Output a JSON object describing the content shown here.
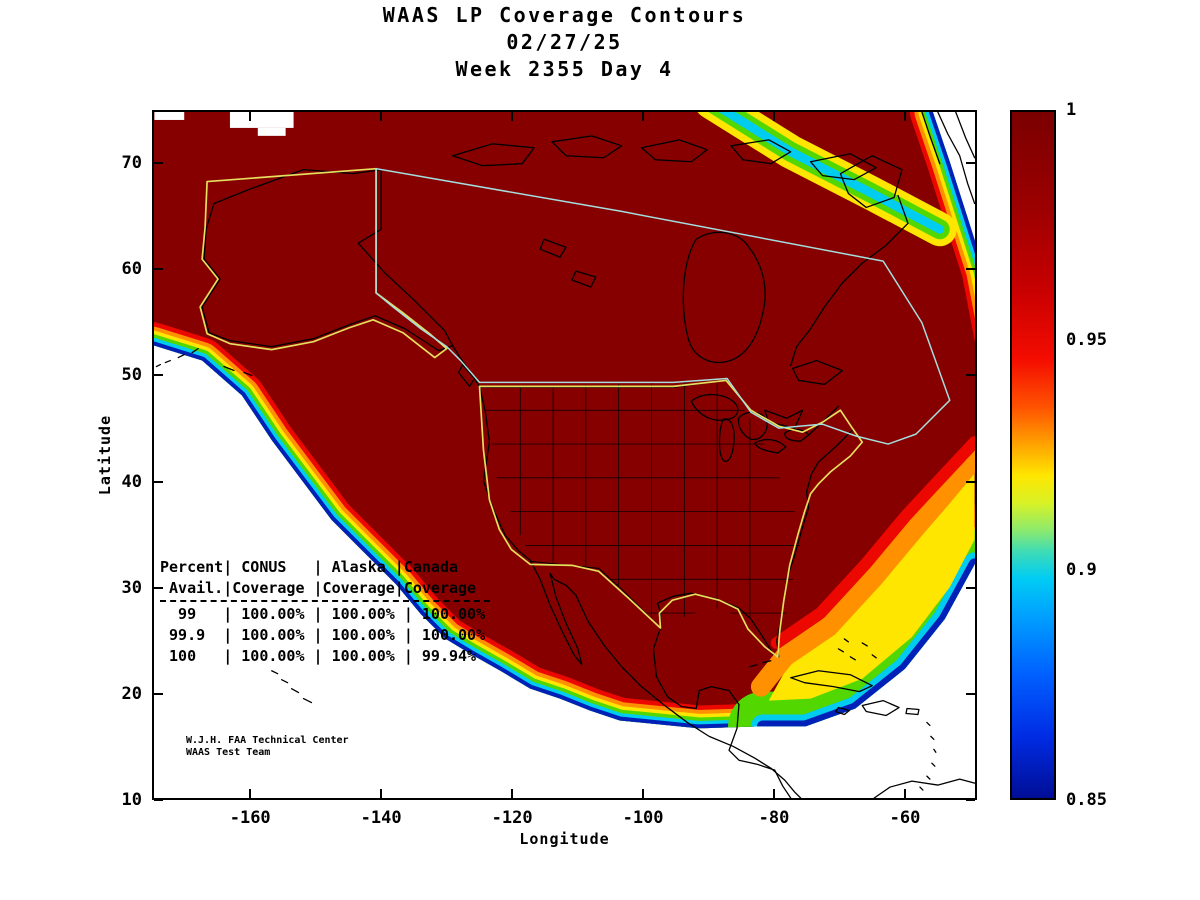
{
  "title": {
    "line1": "WAAS LP Coverage Contours",
    "line2": "02/27/25",
    "line3": "Week 2355 Day 4"
  },
  "axes": {
    "xlabel": "Longitude",
    "ylabel": "Latitude"
  },
  "credit": {
    "line1": "W.J.H. FAA Technical Center",
    "line2": "WAAS Test Team"
  },
  "colors": {
    "coverage_fill": "#860000",
    "band_red": "#ec0800",
    "band_orange": "#ff9000",
    "band_yellow": "#ffe600",
    "band_green": "#52d800",
    "band_cyan": "#00ccf0",
    "band_blue": "#0020b8",
    "conus_outline": "#e6de5e",
    "canada_outline": "#a4dede"
  },
  "chart_data": {
    "type": "heatmap",
    "title": "WAAS LP Coverage Contours",
    "date": "02/27/25",
    "week_label": "Week 2355 Day 4",
    "xlabel": "Longitude",
    "ylabel": "Latitude",
    "xlim": [
      -175,
      -49
    ],
    "ylim": [
      10,
      75
    ],
    "x_ticks": [
      -160,
      -140,
      -120,
      -100,
      -80,
      -60
    ],
    "y_ticks": [
      10,
      20,
      30,
      40,
      50,
      60,
      70
    ],
    "colorbar": {
      "min": 0.85,
      "max": 1,
      "colormap": "jet",
      "ticks": [
        {
          "value": 1,
          "label": "1"
        },
        {
          "value": 0.95,
          "label": "0.95"
        },
        {
          "value": 0.9,
          "label": "0.9"
        },
        {
          "value": 0.85,
          "label": "0.85"
        }
      ]
    },
    "regions_outlined": [
      "CONUS",
      "Alaska",
      "Canada"
    ],
    "coverage_table": {
      "columns": [
        "Percent Avail.",
        "CONUS Coverage",
        "Alaska Coverage",
        "Canada Coverage"
      ],
      "rows": [
        [
          "99",
          "100.00%",
          "100.00%",
          "100.00%"
        ],
        [
          "99.9",
          "100.00%",
          "100.00%",
          "100.00%"
        ],
        [
          "100",
          "100.00%",
          "100.00%",
          "99.94%"
        ]
      ],
      "display_lines": [
        "Percent| CONUS   | Alaska |Canada",
        " Avail.|Coverage |Coverage|Coverage",
        "  99   | 100.00% | 100.00% | 100.00%",
        " 99.9  | 100.00% | 100.00% | 100.00%",
        " 100   | 100.00% | 100.00% | 99.94%"
      ]
    }
  }
}
